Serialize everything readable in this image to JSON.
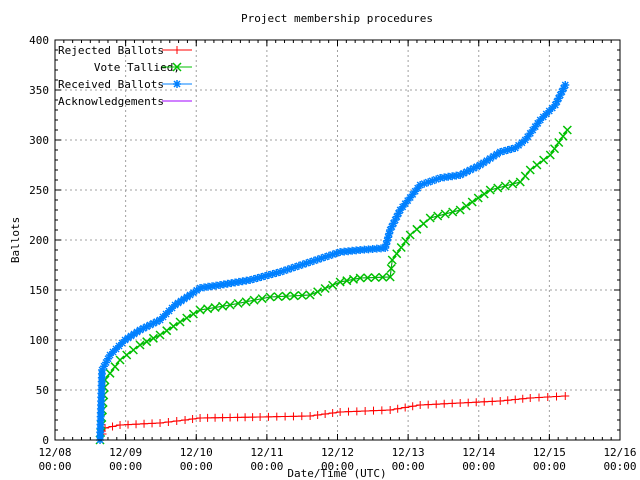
{
  "chart_data": {
    "type": "line",
    "title": "Project membership procedures",
    "xlabel": "Date/Time (UTC)",
    "ylabel": "Ballots",
    "ylim": [
      0,
      400
    ],
    "yticks": [
      "0",
      "50",
      "100",
      "150",
      "200",
      "250",
      "300",
      "350",
      "400"
    ],
    "xlim": [
      "12/08 00:00",
      "12/16 00:00"
    ],
    "xticks": [
      {
        "date": "12/08",
        "time": "00:00"
      },
      {
        "date": "12/09",
        "time": "00:00"
      },
      {
        "date": "12/10",
        "time": "00:00"
      },
      {
        "date": "12/11",
        "time": "00:00"
      },
      {
        "date": "12/12",
        "time": "00:00"
      },
      {
        "date": "12/13",
        "time": "00:00"
      },
      {
        "date": "12/14",
        "time": "00:00"
      },
      {
        "date": "12/15",
        "time": "00:00"
      },
      {
        "date": "12/16",
        "time": "00:00"
      }
    ],
    "grid": true,
    "legend_position": "top-left",
    "series": [
      {
        "name": "Rejected Ballots",
        "color": "#ff0000",
        "marker": "plus",
        "points": [
          [
            "12/08 15:18",
            0
          ],
          [
            "12/08 17:00",
            12
          ],
          [
            "12/08 22:06",
            15
          ],
          [
            "12/09 11:42",
            17
          ],
          [
            "12/09 20:12",
            20
          ],
          [
            "12/10 01:18",
            22
          ],
          [
            "12/10 21:42",
            23
          ],
          [
            "12/11 14:42",
            24
          ],
          [
            "12/12 00:54",
            28
          ],
          [
            "12/12 17:54",
            30
          ],
          [
            "12/13 04:06",
            35
          ],
          [
            "12/13 17:42",
            37
          ],
          [
            "12/14 07:18",
            39
          ],
          [
            "12/14 17:30",
            42
          ],
          [
            "12/15 05:24",
            44
          ]
        ]
      },
      {
        "name": "Vote Tallied,",
        "color": "#00c000",
        "marker": "x",
        "points": [
          [
            "12/08 15:18",
            0
          ],
          [
            "12/08 17:00",
            60
          ],
          [
            "12/08 22:06",
            80
          ],
          [
            "12/09 04:54",
            95
          ],
          [
            "12/09 11:42",
            105
          ],
          [
            "12/09 18:30",
            118
          ],
          [
            "12/10 01:18",
            130
          ],
          [
            "12/10 11:30",
            135
          ],
          [
            "12/11 01:06",
            143
          ],
          [
            "12/11 14:42",
            145
          ],
          [
            "12/12 00:54",
            158
          ],
          [
            "12/12 07:42",
            162
          ],
          [
            "12/12 17:54",
            163
          ],
          [
            "12/12 18:36",
            180
          ],
          [
            "12/13 00:42",
            205
          ],
          [
            "12/13 07:30",
            222
          ],
          [
            "12/13 17:42",
            230
          ],
          [
            "12/14 03:54",
            250
          ],
          [
            "12/14 14:06",
            258
          ],
          [
            "12/14 17:30",
            270
          ],
          [
            "12/15 00:18",
            285
          ],
          [
            "12/15 06:06",
            310
          ]
        ]
      },
      {
        "name": "Received Ballots",
        "color": "#0080ff",
        "marker": "star",
        "points": [
          [
            "12/08 15:18",
            0
          ],
          [
            "12/08 16:00",
            70
          ],
          [
            "12/08 18:42",
            85
          ],
          [
            "12/08 23:48",
            100
          ],
          [
            "12/09 04:54",
            110
          ],
          [
            "12/09 11:42",
            120
          ],
          [
            "12/09 16:48",
            135
          ],
          [
            "12/09 21:54",
            145
          ],
          [
            "12/10 01:18",
            152
          ],
          [
            "12/10 08:06",
            155
          ],
          [
            "12/10 18:18",
            160
          ],
          [
            "12/11 04:30",
            168
          ],
          [
            "12/11 14:42",
            178
          ],
          [
            "12/12 00:54",
            188
          ],
          [
            "12/12 07:42",
            190
          ],
          [
            "12/12 16:12",
            192
          ],
          [
            "12/12 17:54",
            210
          ],
          [
            "12/12 21:18",
            230
          ],
          [
            "12/13 04:06",
            255
          ],
          [
            "12/13 10:54",
            262
          ],
          [
            "12/13 17:42",
            265
          ],
          [
            "12/14 00:30",
            275
          ],
          [
            "12/14 07:18",
            288
          ],
          [
            "12/14 12:24",
            292
          ],
          [
            "12/14 15:48",
            300
          ],
          [
            "12/14 20:54",
            320
          ],
          [
            "12/15 02:00",
            335
          ],
          [
            "12/15 05:24",
            355
          ]
        ]
      },
      {
        "name": "Acknowledgements",
        "color": "#a000ff",
        "marker": "none",
        "points": [
          [
            "12/08 15:18",
            0
          ],
          [
            "12/08 17:00",
            60
          ],
          [
            "12/08 22:06",
            80
          ],
          [
            "12/09 04:54",
            95
          ],
          [
            "12/09 11:42",
            105
          ],
          [
            "12/09 18:30",
            118
          ],
          [
            "12/10 01:18",
            130
          ],
          [
            "12/10 11:30",
            135
          ],
          [
            "12/11 01:06",
            143
          ],
          [
            "12/11 14:42",
            145
          ],
          [
            "12/12 00:54",
            158
          ],
          [
            "12/12 07:42",
            162
          ],
          [
            "12/12 17:54",
            163
          ],
          [
            "12/12 18:36",
            180
          ],
          [
            "12/13 00:42",
            205
          ],
          [
            "12/13 07:30",
            222
          ],
          [
            "12/13 17:42",
            230
          ],
          [
            "12/14 03:54",
            250
          ],
          [
            "12/14 14:06",
            258
          ],
          [
            "12/14 17:30",
            270
          ],
          [
            "12/15 00:18",
            285
          ],
          [
            "12/15 06:06",
            310
          ]
        ]
      }
    ]
  }
}
